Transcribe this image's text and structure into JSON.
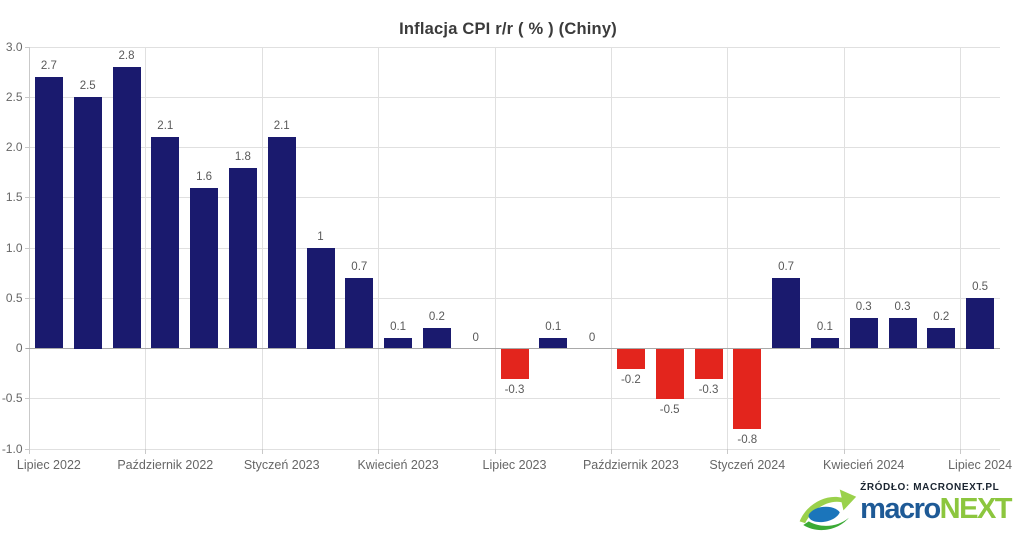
{
  "title": "Inflacja CPI r/r ( % ) (Chiny)",
  "source": {
    "label": "ŹRÓDŁO: MACRONEXT.PL",
    "brand_macro": "macro",
    "brand_next": "NEXT"
  },
  "colors": {
    "positive": "#1a1a6e",
    "negative": "#e3251d",
    "grid": "#e0e0e0",
    "axis": "#c9c9c9",
    "zero_line": "#a9a9a9",
    "tick_label": "#666666",
    "data_label": "#595959",
    "title": "#3b3b3b",
    "source_text": "#1a2430",
    "brand_blue": "#1e5a96",
    "brand_green": "#8cc63e",
    "logo_blue": "#1b75bb",
    "logo_green": "#3aaa35",
    "logo_green_light": "#9ad14b"
  },
  "chart_data": {
    "type": "bar",
    "title": "Inflacja CPI r/r ( % ) (Chiny)",
    "xlabel": "",
    "ylabel": "",
    "ylim": [
      -1.0,
      3.0
    ],
    "grid": true,
    "legend": "none",
    "x_tick_labels": [
      "Lipiec 2022",
      "Październik 2022",
      "Styczeń 2023",
      "Kwiecień 2023",
      "Lipiec 2023",
      "Październik 2023",
      "Styczeń 2024",
      "Kwiecień 2024",
      "Lipiec 2024"
    ],
    "x_tick_positions": [
      0,
      3,
      6,
      9,
      12,
      15,
      18,
      21,
      24
    ],
    "values": [
      2.7,
      2.5,
      2.8,
      2.1,
      1.6,
      1.8,
      2.1,
      1,
      0.7,
      0.1,
      0.2,
      0,
      -0.3,
      0.1,
      0,
      -0.2,
      -0.5,
      -0.3,
      -0.8,
      0.7,
      0.1,
      0.3,
      0.3,
      0.2,
      0.5
    ],
    "value_labels": [
      "2.7",
      "2.5",
      "2.8",
      "2.1",
      "1.6",
      "1.8",
      "2.1",
      "1",
      "0.7",
      "0.1",
      "0.2",
      "0",
      "-0.3",
      "0.1",
      "0",
      "-0.2",
      "-0.5",
      "-0.3",
      "-0.8",
      "0.7",
      "0.1",
      "0.3",
      "0.3",
      "0.2",
      "0.5"
    ],
    "y_tick_labels": [
      "3.0",
      "2.5",
      "2.0",
      "1.5",
      "1.0",
      "0.5",
      "0",
      "-0.5",
      "-1.0"
    ],
    "y_tick_values": [
      3,
      2.5,
      2,
      1.5,
      1,
      0.5,
      0,
      -0.5,
      -1
    ]
  }
}
